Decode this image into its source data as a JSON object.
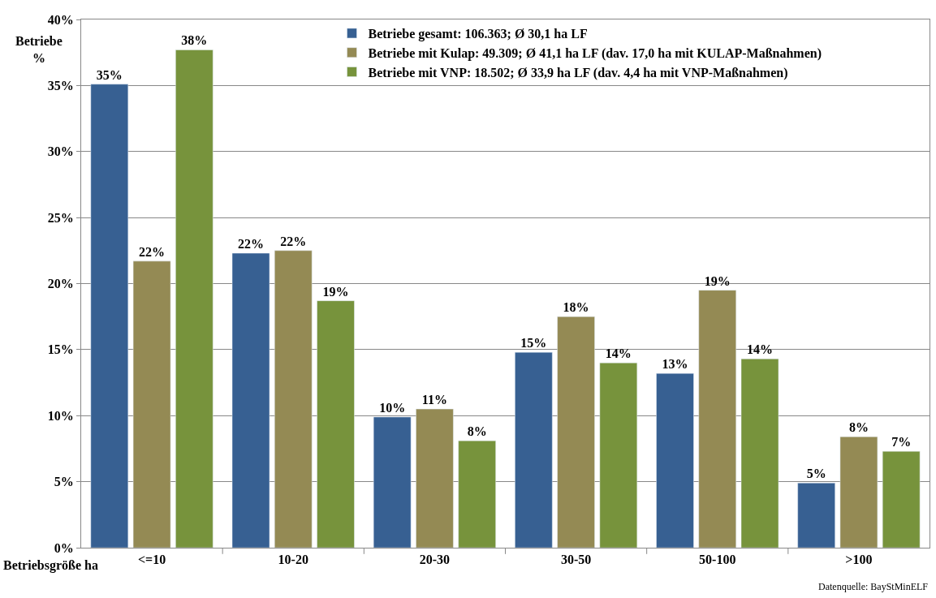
{
  "chart_data": {
    "type": "bar",
    "xlabel": "Betriebsgröße ha",
    "ylabel": "Betriebe\n%",
    "categories": [
      "<=10",
      "10-20",
      "20-30",
      "30-50",
      "50-100",
      ">100"
    ],
    "series": [
      {
        "name": "Betriebe gesamt: 106.363; Ø 30,1 ha LF",
        "color": "#376092",
        "values": [
          35.1,
          22.3,
          9.9,
          14.8,
          13.2,
          4.9
        ],
        "value_labels": [
          "35%",
          "22%",
          "10%",
          "15%",
          "13%",
          "5%"
        ]
      },
      {
        "name": "Betriebe mit Kulap: 49.309; Ø 41,1 ha LF (dav. 17,0 ha mit KULAP-Maßnahmen)",
        "color": "#948a54",
        "values": [
          21.7,
          22.5,
          10.5,
          17.5,
          19.5,
          8.4
        ],
        "value_labels": [
          "22%",
          "22%",
          "11%",
          "18%",
          "19%",
          "8%"
        ]
      },
      {
        "name": "Betriebe mit VNP: 18.502; Ø 33,9 ha LF (dav. 4,4 ha mit VNP-Maßnahmen)",
        "color": "#77933c",
        "values": [
          37.7,
          18.7,
          8.1,
          14.0,
          14.3,
          7.3
        ],
        "value_labels": [
          "38%",
          "19%",
          "8%",
          "14%",
          "14%",
          "7%"
        ]
      }
    ],
    "ylim": [
      0,
      40
    ],
    "yticks": [
      {
        "value": 0,
        "label": "0%"
      },
      {
        "value": 5,
        "label": "5%"
      },
      {
        "value": 10,
        "label": "10%"
      },
      {
        "value": 15,
        "label": "15%"
      },
      {
        "value": 20,
        "label": "20%"
      },
      {
        "value": 25,
        "label": "25%"
      },
      {
        "value": 30,
        "label": "30%"
      },
      {
        "value": 35,
        "label": "35%"
      },
      {
        "value": 40,
        "label": "40%"
      }
    ],
    "grid": "y",
    "legend": "top",
    "annotations": [
      "Datenquelle: BayStMinELF"
    ]
  }
}
